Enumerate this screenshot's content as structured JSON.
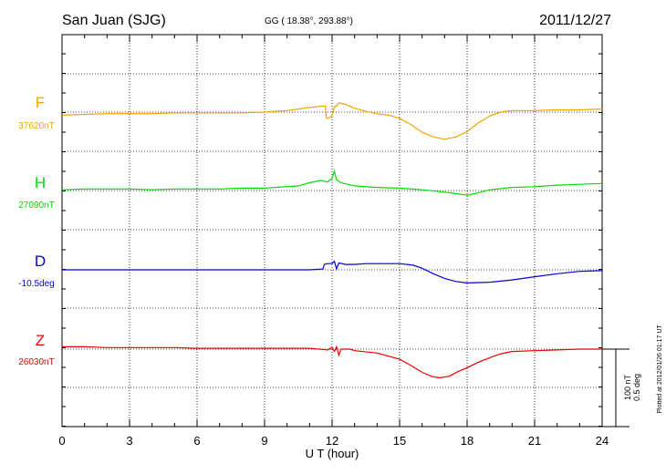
{
  "header": {
    "station": "San Juan (SJG)",
    "coords": "GG ( 18.38°, 293.88°)",
    "date": "2011/12/27"
  },
  "footer": {
    "plotted": "Plotted at 2012/01/26 01:17 UT"
  },
  "scale_bar": {
    "line1": "100 nT",
    "line2": "0.5 deg"
  },
  "chart_data": {
    "type": "line",
    "title": "San Juan (SJG)",
    "xlabel": "U T (hour)",
    "ylabel": "",
    "xlim": [
      0,
      24
    ],
    "xticks": [
      "0",
      "3",
      "6",
      "9",
      "12",
      "15",
      "18",
      "21",
      "24"
    ],
    "grid": true,
    "scale_nT_per_bar": 100,
    "series": [
      {
        "name": "F",
        "baseline_label": "37620nT",
        "color": "#f0a500",
        "baseline_hour_span": [
          0,
          24
        ],
        "points": [
          [
            0,
            4
          ],
          [
            1,
            3
          ],
          [
            2,
            2
          ],
          [
            3,
            2
          ],
          [
            4,
            2
          ],
          [
            5,
            1
          ],
          [
            6,
            1
          ],
          [
            7,
            1
          ],
          [
            8,
            1
          ],
          [
            9,
            0
          ],
          [
            10,
            -2
          ],
          [
            11,
            -6
          ],
          [
            11.7,
            -8
          ],
          [
            11.75,
            8
          ],
          [
            11.85,
            8
          ],
          [
            12.0,
            4
          ],
          [
            12.1,
            -7
          ],
          [
            12.2,
            -8
          ],
          [
            12.3,
            -12
          ],
          [
            12.6,
            -10
          ],
          [
            13,
            -5
          ],
          [
            13.5,
            -1
          ],
          [
            14,
            2
          ],
          [
            14.5,
            4
          ],
          [
            15,
            8
          ],
          [
            15.5,
            16
          ],
          [
            16,
            26
          ],
          [
            16.5,
            32
          ],
          [
            17,
            35
          ],
          [
            17.5,
            32
          ],
          [
            18,
            25
          ],
          [
            18.5,
            14
          ],
          [
            19,
            5
          ],
          [
            19.5,
            0
          ],
          [
            20,
            -2
          ],
          [
            21,
            -2
          ],
          [
            22,
            -3
          ],
          [
            23,
            -3
          ],
          [
            24,
            -4
          ]
        ]
      },
      {
        "name": "H",
        "baseline_label": "27090nT",
        "color": "#00dd00",
        "baseline_hour_span": [
          0,
          24
        ],
        "points": [
          [
            0,
            -1
          ],
          [
            1,
            -2
          ],
          [
            2,
            -2
          ],
          [
            3,
            -2
          ],
          [
            4,
            -1
          ],
          [
            5,
            -2
          ],
          [
            6,
            -2
          ],
          [
            7,
            -2
          ],
          [
            8,
            -3
          ],
          [
            9,
            -3
          ],
          [
            10,
            -5
          ],
          [
            10.5,
            -6
          ],
          [
            11,
            -10
          ],
          [
            11.5,
            -13
          ],
          [
            11.8,
            -11
          ],
          [
            12,
            -16
          ],
          [
            12.1,
            -25
          ],
          [
            12.2,
            -14
          ],
          [
            12.4,
            -10
          ],
          [
            12.7,
            -8
          ],
          [
            13,
            -6
          ],
          [
            14,
            -4
          ],
          [
            15,
            -3
          ],
          [
            16,
            -1
          ],
          [
            17,
            2
          ],
          [
            17.5,
            4
          ],
          [
            18,
            6
          ],
          [
            18.5,
            3
          ],
          [
            19,
            -1
          ],
          [
            20,
            -4
          ],
          [
            21,
            -5
          ],
          [
            22,
            -7
          ],
          [
            23,
            -8
          ],
          [
            24,
            -9
          ]
        ]
      },
      {
        "name": "D",
        "baseline_label": "-10.5deg",
        "color": "#0000dd",
        "baseline_hour_span": [
          0,
          24
        ],
        "points": [
          [
            0,
            0
          ],
          [
            2,
            0
          ],
          [
            4,
            0
          ],
          [
            6,
            0
          ],
          [
            8,
            0
          ],
          [
            10,
            0
          ],
          [
            11,
            0
          ],
          [
            11.6,
            -1
          ],
          [
            11.65,
            -7
          ],
          [
            11.8,
            -8
          ],
          [
            12.0,
            -8
          ],
          [
            12.1,
            -11
          ],
          [
            12.2,
            -1
          ],
          [
            12.3,
            -9
          ],
          [
            12.6,
            -7
          ],
          [
            13,
            -7
          ],
          [
            13.5,
            -8
          ],
          [
            15,
            -8
          ],
          [
            15.6,
            -6
          ],
          [
            16,
            -2
          ],
          [
            16.5,
            5
          ],
          [
            17,
            11
          ],
          [
            17.5,
            15
          ],
          [
            18,
            17
          ],
          [
            19,
            16
          ],
          [
            20,
            13
          ],
          [
            21,
            9
          ],
          [
            22,
            5
          ],
          [
            23,
            2
          ],
          [
            24,
            1
          ]
        ]
      },
      {
        "name": "Z",
        "baseline_label": "26030nT",
        "color": "#ee0000",
        "baseline_hour_span": [
          0,
          25
        ],
        "points": [
          [
            0,
            -3
          ],
          [
            1,
            -3
          ],
          [
            2,
            -2
          ],
          [
            3,
            -2
          ],
          [
            4,
            -2
          ],
          [
            5,
            -2
          ],
          [
            6,
            -1
          ],
          [
            7,
            -1
          ],
          [
            8,
            -1
          ],
          [
            9,
            -1
          ],
          [
            10,
            -1
          ],
          [
            11,
            -1
          ],
          [
            11.8,
            1
          ],
          [
            12,
            -2
          ],
          [
            12.1,
            3
          ],
          [
            12.2,
            -3
          ],
          [
            12.3,
            8
          ],
          [
            12.4,
            0
          ],
          [
            12.8,
            0
          ],
          [
            13,
            2
          ],
          [
            14,
            5
          ],
          [
            15,
            13
          ],
          [
            15.5,
            21
          ],
          [
            16,
            30
          ],
          [
            16.5,
            36
          ],
          [
            16.8,
            37
          ],
          [
            17.2,
            35
          ],
          [
            17.6,
            29
          ],
          [
            18,
            24
          ],
          [
            18.5,
            17
          ],
          [
            19,
            11
          ],
          [
            19.5,
            6
          ],
          [
            20,
            3
          ],
          [
            21,
            2
          ],
          [
            22,
            1
          ],
          [
            23,
            0
          ],
          [
            24,
            0
          ]
        ]
      }
    ]
  }
}
